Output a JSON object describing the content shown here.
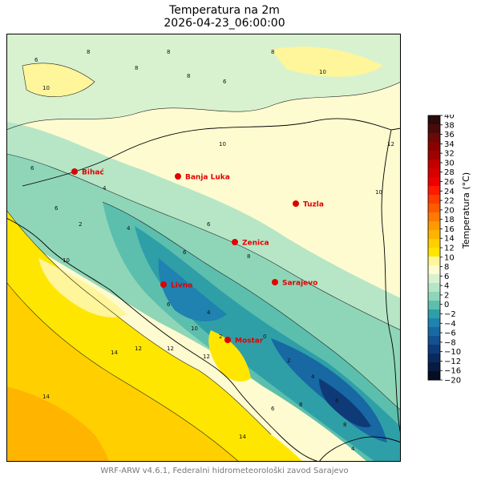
{
  "title": "Temperatura na 2m",
  "datetime": "2026-04-23_06:00:00",
  "colorbar": {
    "label": "Temperatura (°C)",
    "ticks": [
      "40",
      "38",
      "36",
      "34",
      "32",
      "30",
      "28",
      "26",
      "24",
      "22",
      "20",
      "18",
      "16",
      "14",
      "12",
      "10",
      "8",
      "6",
      "4",
      "2",
      "0",
      "−2",
      "−4",
      "−6",
      "−8",
      "−10",
      "−12",
      "−16",
      "−20"
    ],
    "colors": [
      "#2a0a0a",
      "#4a0a0a",
      "#6b0808",
      "#8b0000",
      "#a00000",
      "#c00000",
      "#d80000",
      "#ee0000",
      "#ff1a00",
      "#ff3d00",
      "#ff5a00",
      "#ff7a00",
      "#ff9a00",
      "#ffb400",
      "#ffcf00",
      "#ffe600",
      "#fff59a",
      "#fffbd0",
      "#d8f2d0",
      "#b6e6c6",
      "#8fd6b8",
      "#5cbfae",
      "#2f9fa7",
      "#1f82b0",
      "#1768a3",
      "#135191",
      "#0e3a78",
      "#0a2a5e",
      "#071b3f",
      "#050d22"
    ]
  },
  "cities": [
    {
      "name": "Bihać"
    },
    {
      "name": "Banja Luka"
    },
    {
      "name": "Tuzla"
    },
    {
      "name": "Zenica"
    },
    {
      "name": "Livno"
    },
    {
      "name": "Sarajevo"
    },
    {
      "name": "Mostar"
    }
  ],
  "contour_labels": [
    "6",
    "8",
    "8",
    "8",
    "10",
    "8",
    "8",
    "6",
    "10",
    "10",
    "12",
    "10",
    "6",
    "6",
    "4",
    "2",
    "4",
    "6",
    "6",
    "8",
    "10",
    "6",
    "4",
    "2",
    "0",
    "2",
    "4",
    "6",
    "8",
    "10",
    "12",
    "12",
    "14",
    "14",
    "14",
    "8",
    "6",
    "4",
    "12"
  ],
  "footer": "WRF-ARW v4.6.1, Federalni hidrometeorološki zavod Sarajevo"
}
